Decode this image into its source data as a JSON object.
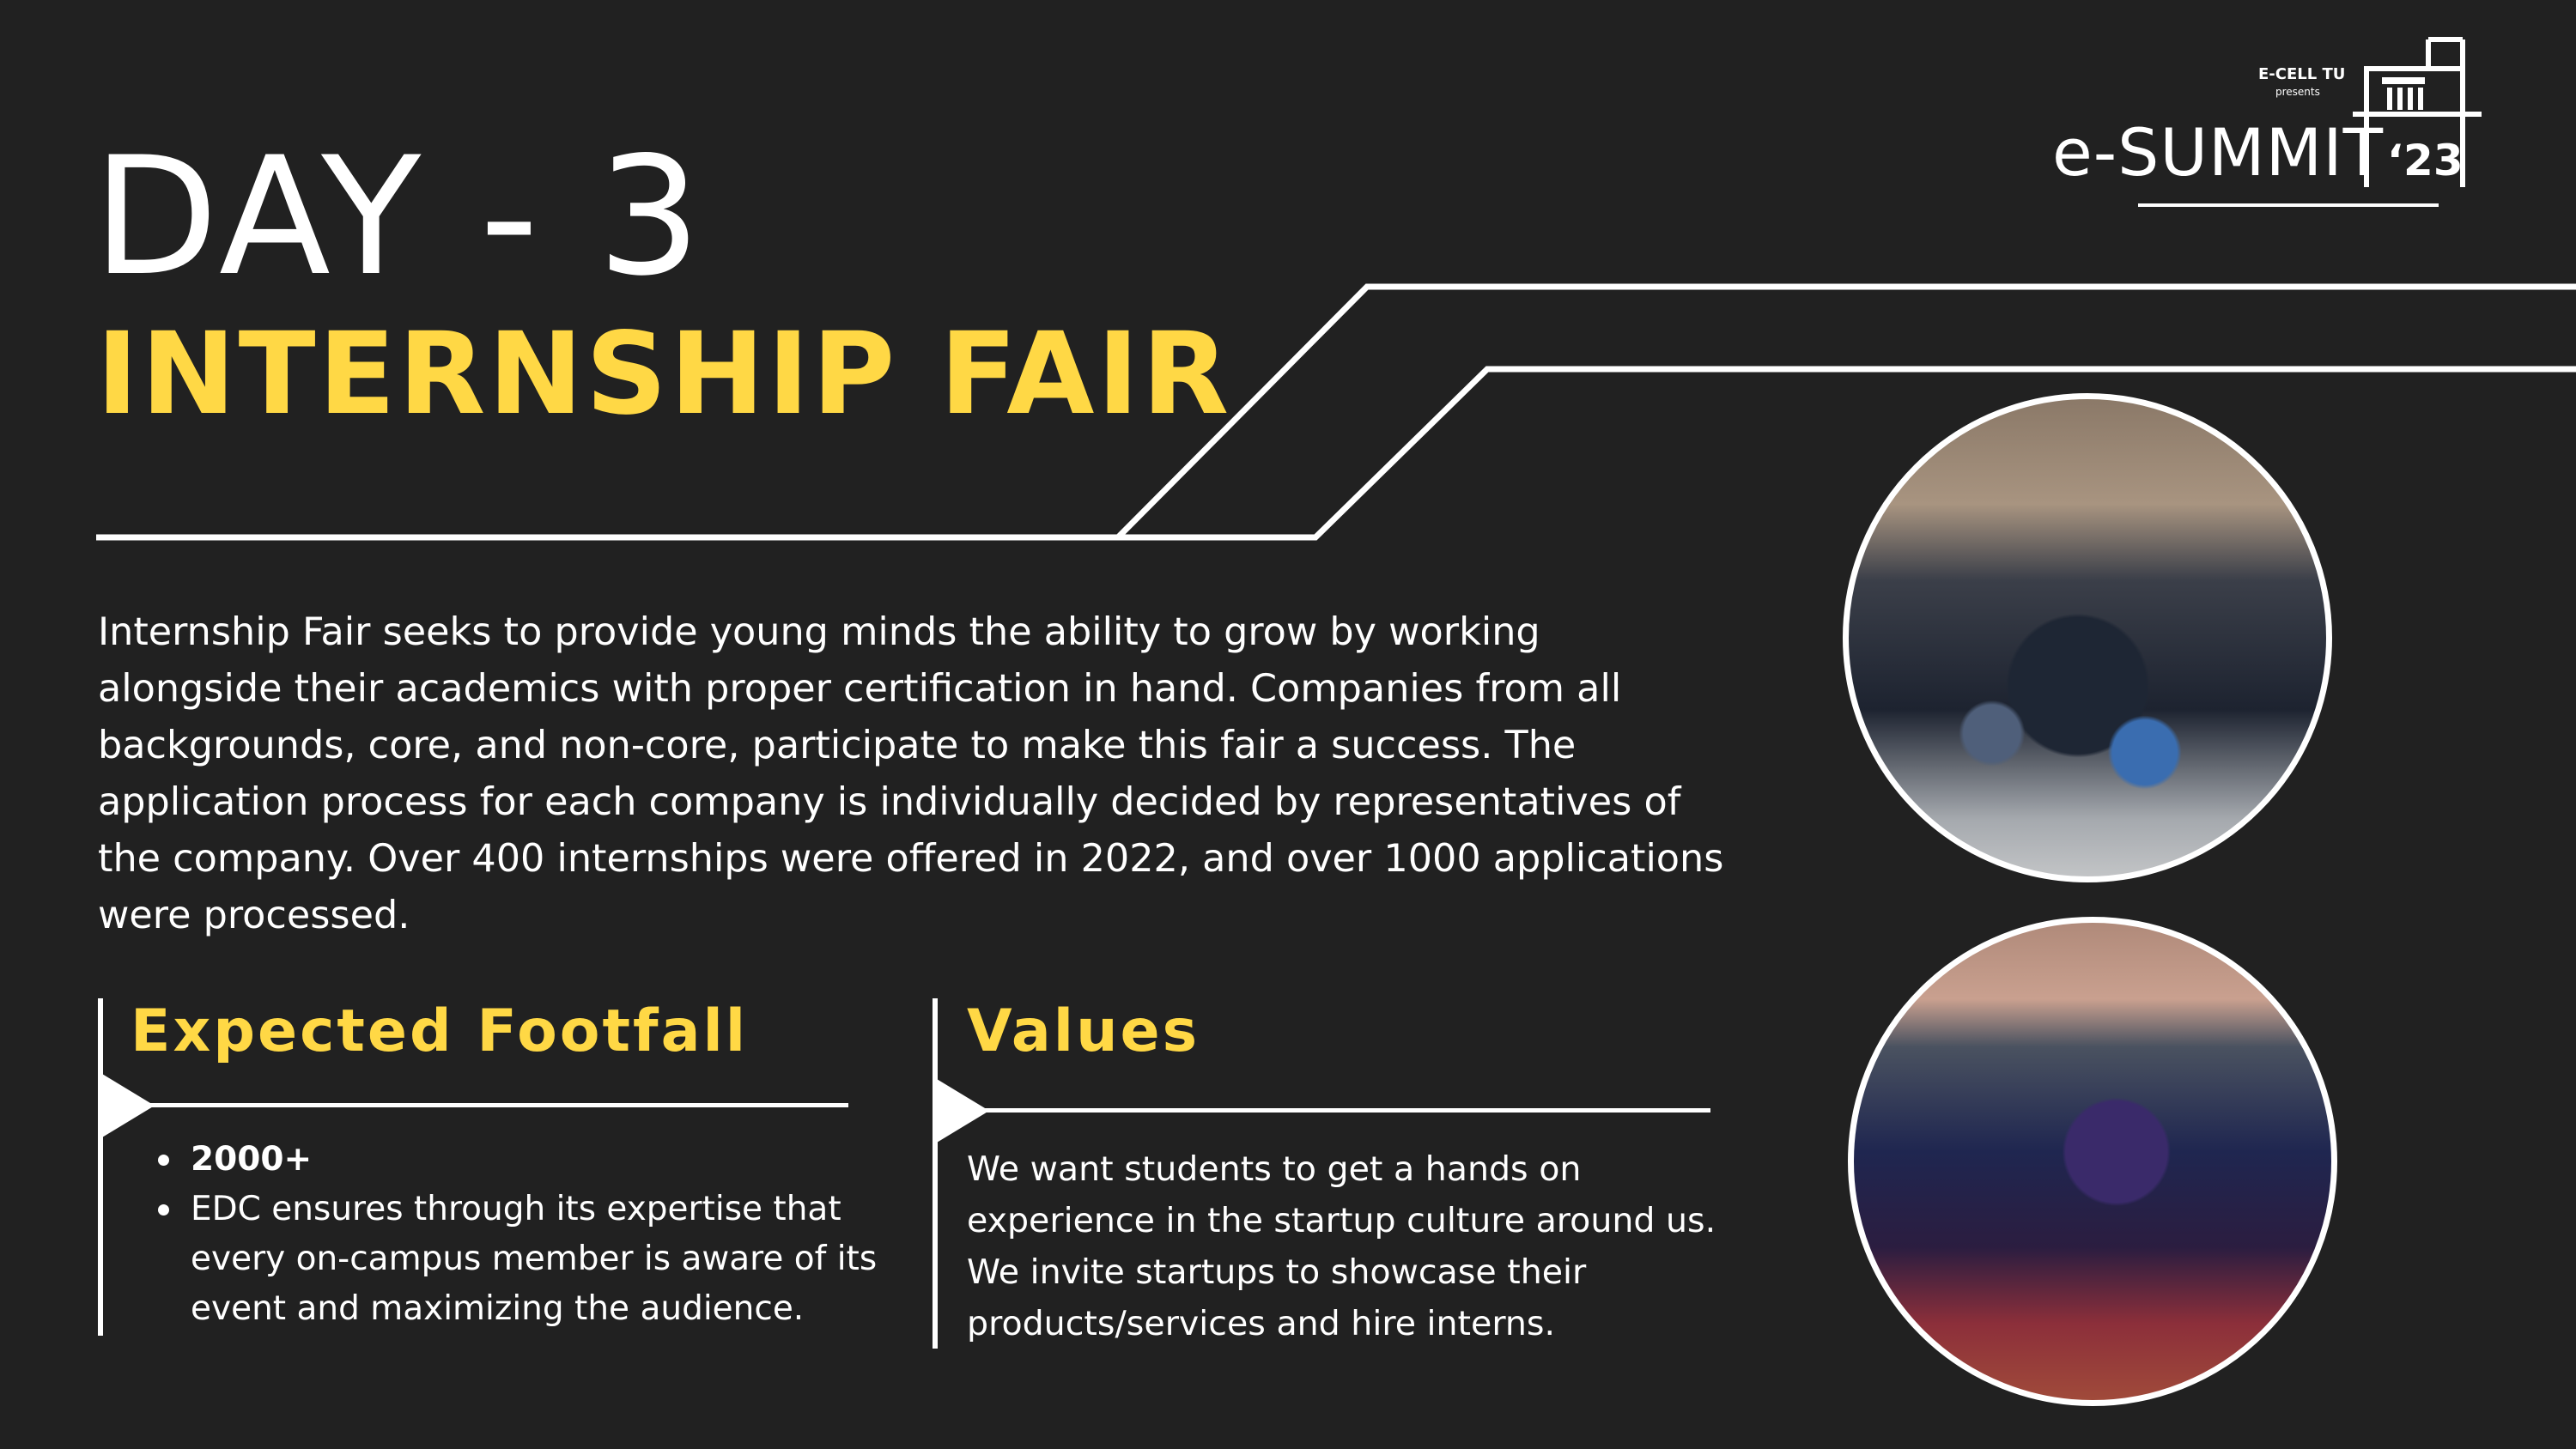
{
  "colors": {
    "background": "#212121",
    "accent": "#ffd845",
    "text": "#ffffff"
  },
  "logo": {
    "org": "E-CELL TU",
    "presents": "presents",
    "wordmark": "e-SUMMIT",
    "year": "‘23"
  },
  "heading": {
    "day": "DAY - 3",
    "event": "INTERNSHIP FAIR"
  },
  "description": "Internship Fair seeks to provide young minds the ability to grow by working alongside their academics with proper certification in hand. Companies from all backgrounds, core, and non-core, participate to make this fair a success. The application process for each company is individually decided by representatives of the company. Over 400 internships were offered in 2022, and over 1000 applications were processed.",
  "footfall": {
    "title": "Expected Footfall",
    "items": [
      "2000+",
      "EDC ensures through its expertise that every on-campus member is aware of its event and maximizing the audience."
    ]
  },
  "values": {
    "title": "Values",
    "text": "We want students to get a hands on experience in the startup culture around us. We invite startups to showcase their products/services and hire interns."
  }
}
